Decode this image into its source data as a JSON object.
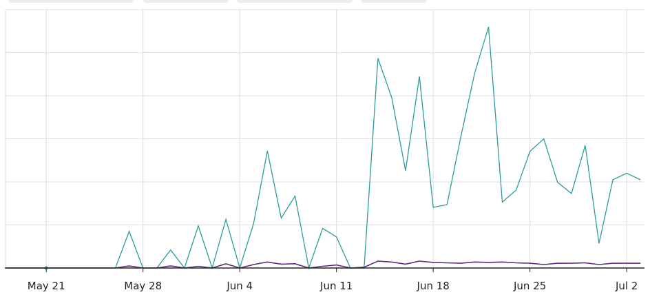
{
  "chart_data": {
    "type": "line",
    "title": "",
    "xlabel": "",
    "ylabel": "",
    "x_tick_labels": [
      "May 21",
      "May 28",
      "Jun 4",
      "Jun 11",
      "Jun 18",
      "Jun 25",
      "Jul 2"
    ],
    "x": [
      "May 18",
      "May 19",
      "May 20",
      "May 21",
      "May 22",
      "May 23",
      "May 24",
      "May 25",
      "May 26",
      "May 27",
      "May 28",
      "May 29",
      "May 30",
      "May 31",
      "Jun 1",
      "Jun 2",
      "Jun 3",
      "Jun 4",
      "Jun 5",
      "Jun 6",
      "Jun 7",
      "Jun 8",
      "Jun 9",
      "Jun 10",
      "Jun 11",
      "Jun 12",
      "Jun 13",
      "Jun 14",
      "Jun 15",
      "Jun 16",
      "Jun 17",
      "Jun 18",
      "Jun 19",
      "Jun 20",
      "Jun 21",
      "Jun 22",
      "Jun 23",
      "Jun 24",
      "Jun 25",
      "Jun 26",
      "Jun 27",
      "Jun 28",
      "Jun 29",
      "Jun 30",
      "Jul 1",
      "Jul 2",
      "Jul 3"
    ],
    "ylim": [
      0,
      6
    ],
    "grid": true,
    "legend": "none",
    "series": [
      {
        "color": "#2a9d9a",
        "values": [
          0,
          0,
          0,
          0,
          0,
          0,
          0,
          0,
          0,
          0.85,
          0,
          0,
          0.42,
          0,
          0.98,
          0,
          1.13,
          0,
          1.03,
          2.72,
          1.16,
          1.67,
          0,
          0.92,
          0.72,
          0,
          0,
          4.87,
          3.95,
          2.26,
          4.45,
          1.41,
          1.47,
          3.05,
          4.53,
          5.6,
          1.53,
          1.81,
          2.71,
          3.0,
          1.99,
          1.73,
          2.85,
          0.57,
          2.05,
          2.2,
          2.05
        ]
      },
      {
        "color": "#5b2c83",
        "values": [
          0,
          0,
          0,
          0,
          0,
          0,
          0,
          0,
          0,
          0.05,
          0,
          0,
          0.05,
          0,
          0.04,
          0,
          0.1,
          0,
          0.08,
          0.14,
          0.09,
          0.1,
          0,
          0.04,
          0.07,
          0,
          0.02,
          0.16,
          0.14,
          0.09,
          0.16,
          0.13,
          0.12,
          0.11,
          0.14,
          0.13,
          0.14,
          0.12,
          0.11,
          0.08,
          0.11,
          0.11,
          0.12,
          0.08,
          0.11,
          0.11,
          0.11
        ]
      }
    ]
  },
  "colors": {
    "grid": "#dddddd",
    "axis": "#222222",
    "tab_stub": "#ececec"
  }
}
